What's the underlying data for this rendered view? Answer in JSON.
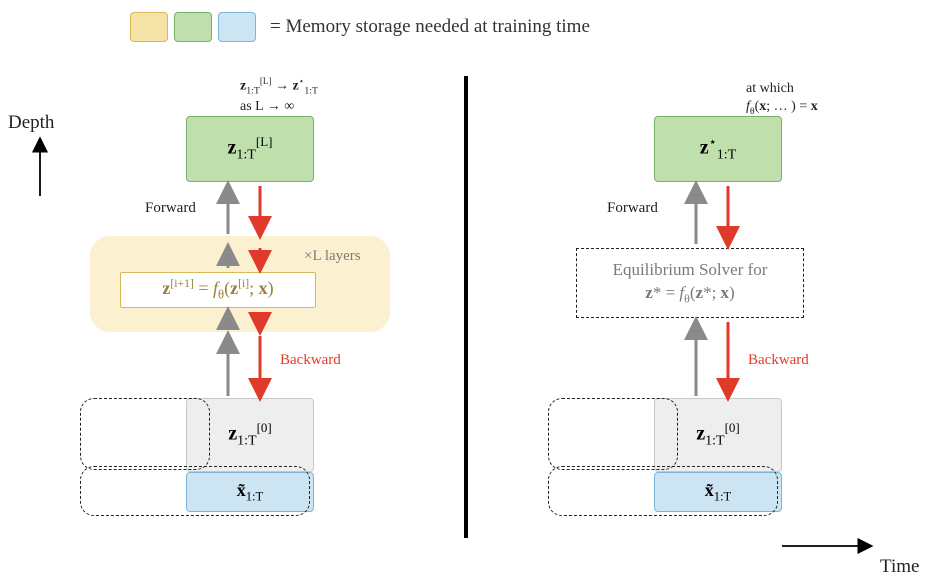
{
  "colors": {
    "yellow_fill": "#f6e3a8",
    "yellow_border": "#d9b957",
    "yellow_light": "#fbf0cf",
    "green_fill": "#bfe0ad",
    "green_border": "#78b26a",
    "blue_fill": "#cde5f3",
    "blue_border": "#7bb6d9",
    "gray_fill": "#eeeeee",
    "gray_border": "#c8c8c8",
    "arrow_gray": "#8a8a8a",
    "arrow_red": "#e03a2a",
    "text_gray": "#7a7a7a"
  },
  "legend": {
    "text": "= Memory storage needed at training time",
    "swatch_w": 38,
    "swatch_h": 30
  },
  "axes": {
    "depth": "Depth",
    "time": "Time"
  },
  "labels": {
    "forward": "Forward",
    "backward": "Backward",
    "times_L": "×L layers"
  },
  "left": {
    "top_note_html": "<b>z</b><sub>1:T</sub><sup>[L]</sup> → <b>z</b><sup>⋆</sup><sub>1:T</sub><br>as L → ∞",
    "green_html": "<b>z</b><sub>1:T</sub><sup>[L]</sup>",
    "formula_html": "<b>z</b><sup>[i+1]</sup> = <i>f</i><sub>θ</sub>(<b>z</b><sup>[i]</sup>; <b>x</b>)",
    "gray_html": "<b>z</b><sub>1:T</sub><sup>[0]</sup>",
    "blue_html": "<b>x̃</b><sub>1:T</sub>"
  },
  "right": {
    "top_note_html": "at which<br><i>f</i><sub>θ</sub>(<b>x</b>; … ) = <b>x</b>",
    "green_html": "<b>z</b><sup>⋆</sup><sub>1:T</sub>",
    "eq_line1": "Equilibrium Solver for",
    "eq_line2_html": "<b>z</b>* = <i>f</i><sub>θ</sub>(<b>z</b>*; <b>x</b>)",
    "gray_html": "<b>z</b><sub>1:T</sub><sup>[0]</sup>",
    "blue_html": "<b>x̃</b><sub>1:T</sub>"
  }
}
